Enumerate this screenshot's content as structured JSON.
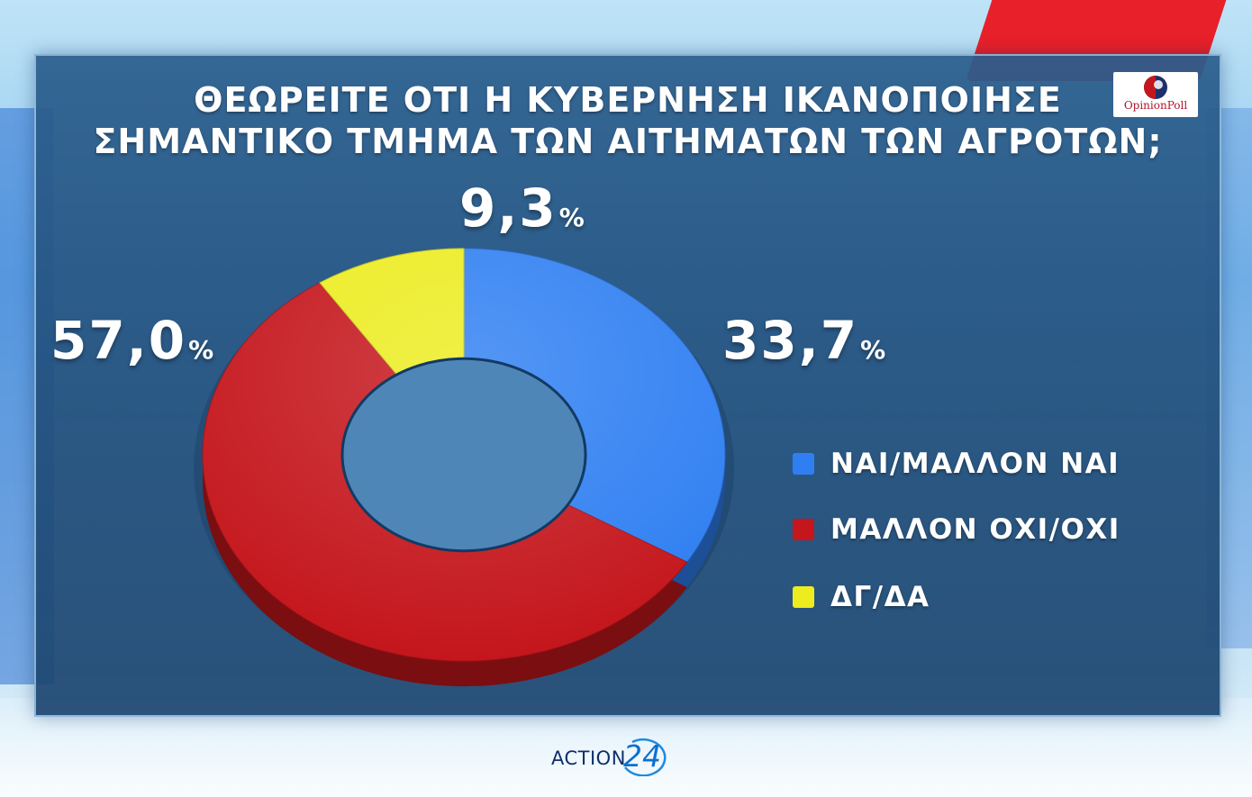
{
  "title_lines": [
    "ΘΕΩΡΕΙΤΕ ΟΤΙ Η ΚΥΒΕΡΝΗΣΗ ΙΚΑΝΟΠΟΙΗΣΕ",
    "ΣΗΜΑΝΤΙΚΟ ΤΜΗΜΑ ΤΩΝ ΑΙΤΗΜΑΤΩΝ ΤΩΝ ΑΓΡΟΤΩΝ;"
  ],
  "logo": {
    "text": "OpinionPoll",
    "icon": "opinionpoll-circle-logo"
  },
  "chart_data": {
    "type": "pie",
    "style": "3d-donut",
    "title": "ΘΕΩΡΕΙΤΕ ΟΤΙ Η ΚΥΒΕΡΝΗΣΗ ΙΚΑΝΟΠΟΙΗΣΕ ΣΗΜΑΝΤΙΚΟ ΤΜΗΜΑ ΤΩΝ ΑΙΤΗΜΑΤΩΝ ΤΩΝ ΑΓΡΟΤΩΝ;",
    "legend_position": "right",
    "slices": [
      {
        "label": "ΝΑΙ/ΜΑΛΛΟΝ ΝΑΙ",
        "value": 33.7,
        "display": "33,7",
        "color": "#2f7ff2"
      },
      {
        "label": "ΜΑΛΛΟΝ ΟΧΙ/ΟΧΙ",
        "value": 57.0,
        "display": "57,0",
        "color": "#c4161c"
      },
      {
        "label": "ΔΓ/ΔΑ",
        "value": 9.3,
        "display": "9,3",
        "color": "#ecec1f"
      }
    ],
    "percent_sign": "%"
  },
  "brand": {
    "text": "ACTION",
    "number": "24"
  },
  "colors": {
    "panel": "#255888",
    "yes": "#2f7ff2",
    "no": "#c4161c",
    "dk": "#ecec1f",
    "background_accent": "#e8202a"
  }
}
